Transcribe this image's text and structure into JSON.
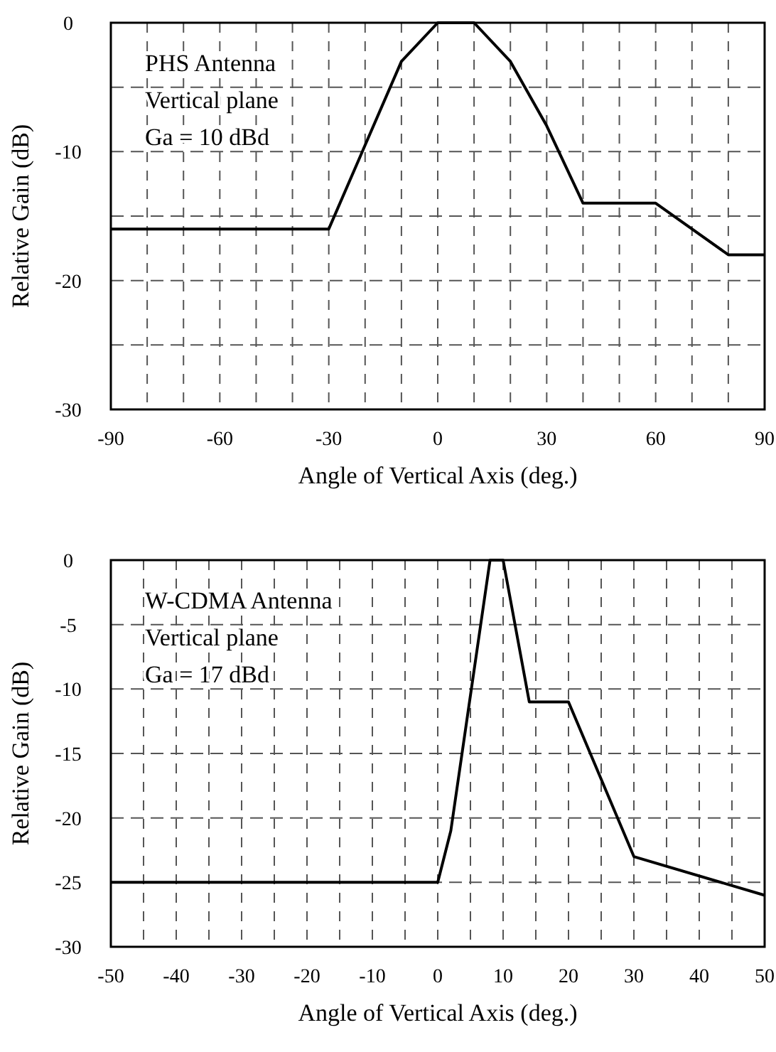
{
  "chart_data": [
    {
      "type": "line",
      "xlabel": "Angle of Vertical Axis (deg.)",
      "ylabel": "Relative Gain (dB)",
      "annotations": [
        "PHS Antenna",
        "Vertical plane",
        "Ga = 10 dBd"
      ],
      "xlim": [
        -90,
        90
      ],
      "ylim": [
        -30,
        0
      ],
      "xticks": [
        -90,
        {
          "value": -80,
          "label": null
        },
        {
          "value": -70,
          "label": null
        },
        -60,
        {
          "value": -50,
          "label": null
        },
        {
          "value": -40,
          "label": null
        },
        -30,
        {
          "value": -20,
          "label": null
        },
        {
          "value": -10,
          "label": null
        },
        0,
        {
          "value": 10,
          "label": null
        },
        {
          "value": 20,
          "label": null
        },
        30,
        {
          "value": 40,
          "label": null
        },
        {
          "value": 50,
          "label": null
        },
        60,
        {
          "value": 70,
          "label": null
        },
        {
          "value": 80,
          "label": null
        },
        90
      ],
      "yticks": [
        -30,
        {
          "value": -25,
          "label": null
        },
        -20,
        {
          "value": -15,
          "label": null
        },
        -10,
        {
          "value": -5,
          "label": null
        },
        0
      ],
      "grid": true,
      "line_style": "solid",
      "marker": "none",
      "series": [
        {
          "color": "#000000",
          "x": [
            -90,
            -30,
            -10,
            0,
            10,
            20,
            30,
            40,
            60,
            80,
            90
          ],
          "values": [
            -16,
            -16,
            -3,
            0,
            0,
            -3,
            -8,
            -14,
            -14,
            -18,
            -18
          ]
        }
      ]
    },
    {
      "type": "line",
      "xlabel": "Angle of Vertical Axis (deg.)",
      "ylabel": "Relative Gain (dB)",
      "annotations": [
        "W-CDMA Antenna",
        "Vertical plane",
        "Ga = 17 dBd"
      ],
      "xlim": [
        -50,
        50
      ],
      "ylim": [
        -30,
        0
      ],
      "xticks": [
        -50,
        {
          "value": -45,
          "label": null
        },
        -40,
        {
          "value": -35,
          "label": null
        },
        -30,
        {
          "value": -25,
          "label": null
        },
        -20,
        {
          "value": -15,
          "label": null
        },
        -10,
        {
          "value": -5,
          "label": null
        },
        0,
        {
          "value": 5,
          "label": null
        },
        10,
        {
          "value": 15,
          "label": null
        },
        20,
        {
          "value": 25,
          "label": null
        },
        30,
        {
          "value": 35,
          "label": null
        },
        40,
        {
          "value": 45,
          "label": null
        },
        50
      ],
      "yticks": [
        -30,
        -25,
        -20,
        -15,
        -10,
        -5,
        0
      ],
      "grid": true,
      "line_style": "solid",
      "marker": "none",
      "series": [
        {
          "color": "#000000",
          "x": [
            -50,
            0,
            2,
            8,
            10,
            14,
            20,
            30,
            50
          ],
          "values": [
            -25,
            -25,
            -21,
            0,
            0,
            -11,
            -11,
            -23,
            -26
          ]
        }
      ]
    }
  ]
}
